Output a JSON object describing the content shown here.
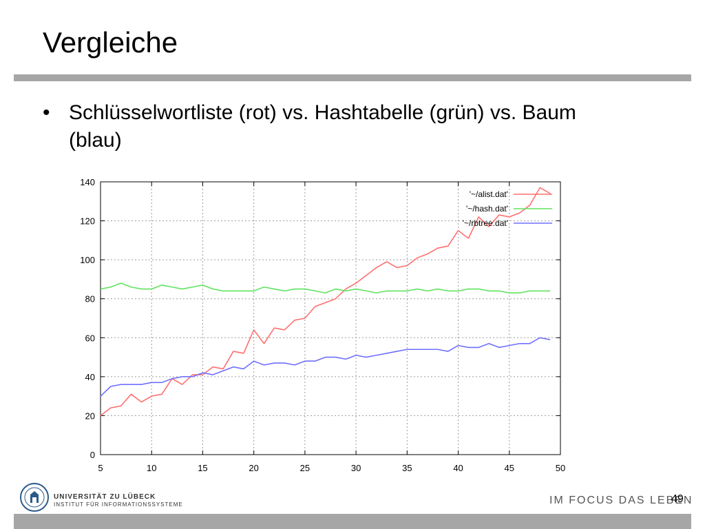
{
  "slide": {
    "title": "Vergleiche",
    "bullet_symbol": "•",
    "bullet_text": "Schlüsselwortliste (rot) vs. Hashtabelle  (grün) vs. Baum (blau)",
    "university": "UNIVERSITÄT ZU LÜBECK",
    "institute": "INSTITUT FÜR INFORMATIONSSYSTEME",
    "slogan": "IM FOCUS DAS LEBEN",
    "page_number": "49"
  },
  "colors": {
    "alist": "#ff6f6f",
    "hash": "#5fe35f",
    "rbtree": "#6f6fff",
    "rule": "#a6a6a6"
  },
  "chart_data": {
    "type": "line",
    "title": "",
    "xlabel": "",
    "ylabel": "",
    "xlim": [
      5,
      50
    ],
    "ylim": [
      0,
      140
    ],
    "x_ticks": [
      5,
      10,
      15,
      20,
      25,
      30,
      35,
      40,
      45,
      50
    ],
    "y_ticks": [
      0,
      20,
      40,
      60,
      80,
      100,
      120,
      140
    ],
    "grid": true,
    "legend_position": "top-right",
    "x": [
      5,
      6,
      7,
      8,
      9,
      10,
      11,
      12,
      13,
      14,
      15,
      16,
      17,
      18,
      19,
      20,
      21,
      22,
      23,
      24,
      25,
      26,
      27,
      28,
      29,
      30,
      31,
      32,
      33,
      34,
      35,
      36,
      37,
      38,
      39,
      40,
      41,
      42,
      43,
      44,
      45,
      46,
      47,
      48,
      49
    ],
    "series": [
      {
        "name": "'~/alist.dat'",
        "color": "#ff6f6f",
        "values": [
          20,
          24,
          25,
          31,
          27,
          30,
          31,
          39,
          36,
          41,
          41,
          45,
          44,
          53,
          52,
          64,
          57,
          65,
          64,
          69,
          70,
          76,
          78,
          80,
          85,
          88,
          92,
          96,
          99,
          96,
          97,
          101,
          103,
          106,
          107,
          115,
          111,
          122,
          117,
          123,
          122,
          124,
          128,
          137,
          134
        ]
      },
      {
        "name": "'~/hash.dat'",
        "color": "#5fe35f",
        "values": [
          85,
          86,
          88,
          86,
          85,
          85,
          87,
          86,
          85,
          86,
          87,
          85,
          84,
          84,
          84,
          84,
          86,
          85,
          84,
          85,
          85,
          84,
          83,
          85,
          84,
          85,
          84,
          83,
          84,
          84,
          84,
          85,
          84,
          85,
          84,
          84,
          85,
          85,
          84,
          84,
          83,
          83,
          84,
          84,
          84
        ]
      },
      {
        "name": "'~/rbtree.dat'",
        "color": "#6f6fff",
        "values": [
          30,
          35,
          36,
          36,
          36,
          37,
          37,
          39,
          40,
          40,
          42,
          41,
          43,
          45,
          44,
          48,
          46,
          47,
          47,
          46,
          48,
          48,
          50,
          50,
          49,
          51,
          50,
          51,
          52,
          53,
          54,
          54,
          54,
          54,
          53,
          56,
          55,
          55,
          57,
          55,
          56,
          57,
          57,
          60,
          59
        ]
      }
    ]
  }
}
